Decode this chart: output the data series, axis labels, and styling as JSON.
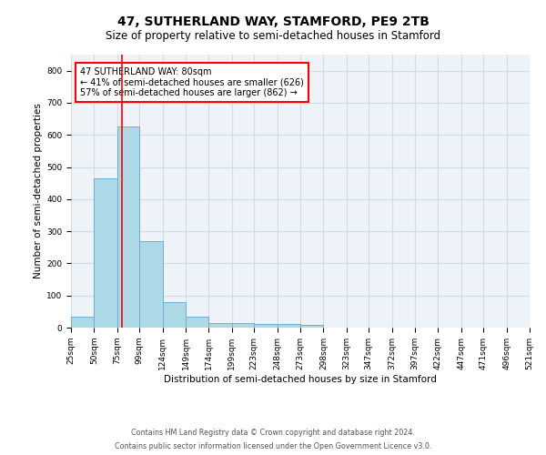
{
  "title": "47, SUTHERLAND WAY, STAMFORD, PE9 2TB",
  "subtitle": "Size of property relative to semi-detached houses in Stamford",
  "xlabel": "Distribution of semi-detached houses by size in Stamford",
  "ylabel": "Number of semi-detached properties",
  "footnote1": "Contains HM Land Registry data © Crown copyright and database right 2024.",
  "footnote2": "Contains public sector information licensed under the Open Government Licence v3.0.",
  "annotation_title": "47 SUTHERLAND WAY: 80sqm",
  "annotation_line1": "← 41% of semi-detached houses are smaller (626)",
  "annotation_line2": "57% of semi-detached houses are larger (862) →",
  "bar_edges": [
    25,
    50,
    75,
    99,
    124,
    149,
    174,
    199,
    223,
    248,
    273,
    298,
    323,
    347,
    372,
    397,
    422,
    447,
    471,
    496,
    521
  ],
  "bar_heights": [
    35,
    465,
    626,
    270,
    80,
    35,
    15,
    13,
    12,
    11,
    9,
    0,
    0,
    0,
    0,
    0,
    0,
    0,
    0,
    0
  ],
  "bar_color": "#add8e6",
  "bar_edge_color": "#6baed6",
  "property_line_x": 80,
  "property_line_color": "red",
  "ylim": [
    0,
    850
  ],
  "yticks": [
    0,
    100,
    200,
    300,
    400,
    500,
    600,
    700,
    800
  ],
  "tick_labels": [
    "25sqm",
    "50sqm",
    "75sqm",
    "99sqm",
    "124sqm",
    "149sqm",
    "174sqm",
    "199sqm",
    "223sqm",
    "248sqm",
    "273sqm",
    "298sqm",
    "323sqm",
    "347sqm",
    "372sqm",
    "397sqm",
    "422sqm",
    "447sqm",
    "471sqm",
    "496sqm",
    "521sqm"
  ],
  "grid_color": "#d0dce8",
  "bg_color": "#eef3f8",
  "annotation_box_color": "white",
  "annotation_box_edge": "red",
  "title_fontsize": 10,
  "subtitle_fontsize": 8.5,
  "axis_label_fontsize": 7.5,
  "ylabel_fontsize": 7.5,
  "tick_fontsize": 6.5,
  "annotation_fontsize": 7.0,
  "footnote_fontsize": 5.8
}
